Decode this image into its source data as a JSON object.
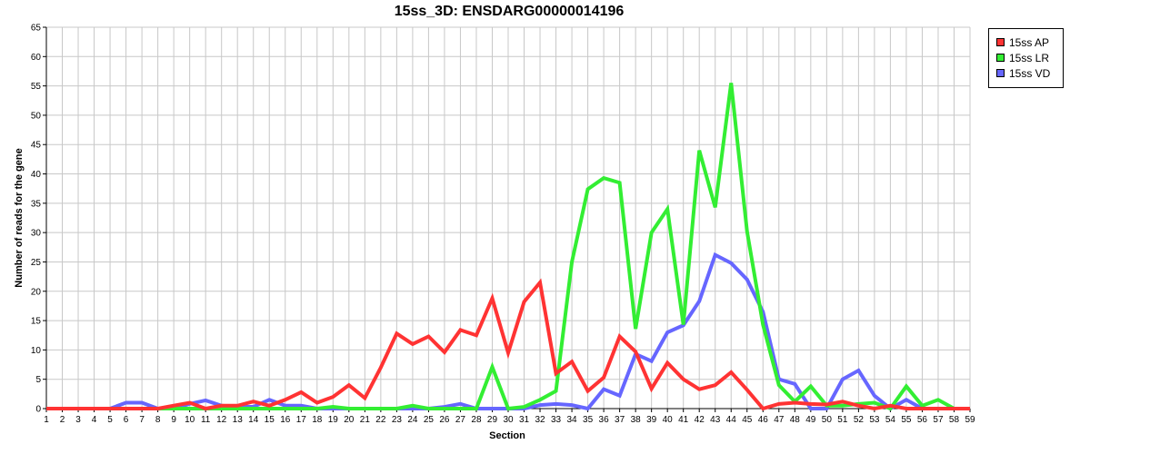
{
  "chart_data": {
    "type": "line",
    "title": "15ss_3D: ENSDARG00000014196",
    "xlabel": "Section",
    "ylabel": "Number of reads for the gene",
    "ylim": [
      0,
      65
    ],
    "yticks": [
      0,
      5,
      10,
      15,
      20,
      25,
      30,
      35,
      40,
      45,
      50,
      55,
      60,
      65
    ],
    "x": [
      "1",
      "2",
      "3",
      "4",
      "5",
      "6",
      "7",
      "8",
      "9",
      "10",
      "11",
      "12",
      "13",
      "14",
      "15",
      "16",
      "17",
      "18",
      "19",
      "20",
      "21",
      "22",
      "23",
      "24",
      "25",
      "26",
      "27",
      "28",
      "29",
      "30",
      "31",
      "32",
      "33",
      "34",
      "35",
      "36",
      "37",
      "38",
      "39",
      "40",
      "41",
      "42",
      "43",
      "44",
      "45",
      "46",
      "47",
      "48",
      "49",
      "50",
      "51",
      "52",
      "53",
      "54",
      "55",
      "56",
      "57",
      "58",
      "59"
    ],
    "grid": true,
    "legend_position": "top-right",
    "series": [
      {
        "name": "15ss AP",
        "color": "#ff3333",
        "values": [
          0,
          0,
          0,
          0,
          0,
          0,
          0,
          0,
          0.5,
          1,
          0,
          0.5,
          0.5,
          1.2,
          0.5,
          1.5,
          2.8,
          1,
          2,
          4,
          1.8,
          7,
          12.8,
          11,
          12.3,
          9.6,
          13.4,
          12.5,
          18.8,
          9.5,
          18.2,
          21.5,
          6,
          8,
          3,
          5.3,
          12.3,
          9.7,
          3.4,
          7.8,
          5,
          3.3,
          4,
          6.2,
          3.2,
          0,
          0.8,
          1,
          0.8,
          0.7,
          1.2,
          0.5,
          0,
          0.5,
          0,
          0,
          0,
          0,
          0
        ]
      },
      {
        "name": "15ss LR",
        "color": "#33ee33",
        "values": [
          0,
          0,
          0,
          0,
          0,
          0,
          0,
          0,
          0,
          0,
          0,
          0,
          0,
          0,
          0,
          0,
          0,
          0,
          0.3,
          0,
          0,
          0,
          0,
          0.5,
          0,
          0,
          0,
          0,
          7.1,
          0,
          0.3,
          1.5,
          3,
          25,
          37.4,
          39.3,
          38.5,
          13.6,
          30,
          34,
          14.3,
          44,
          34.3,
          55.5,
          30.2,
          14.3,
          4,
          1.2,
          3.8,
          0.5,
          0.5,
          0.8,
          1,
          0,
          3.8,
          0.5,
          1.5,
          0,
          0
        ]
      },
      {
        "name": "15ss VD",
        "color": "#6666ff",
        "values": [
          0,
          0,
          0,
          0,
          0,
          1,
          1,
          0,
          0,
          0.8,
          1.4,
          0.5,
          0.3,
          0.3,
          1.5,
          0.5,
          0.5,
          0,
          0,
          0,
          0,
          0,
          0,
          0,
          0,
          0.3,
          0.8,
          0,
          0,
          0,
          0,
          0.6,
          0.8,
          0.6,
          0,
          3.3,
          2.2,
          9.3,
          8.1,
          13,
          14.2,
          18.3,
          26.2,
          24.8,
          22,
          16.5,
          5,
          4.2,
          0,
          0,
          5,
          6.5,
          2.2,
          0,
          1.5,
          0,
          0,
          0,
          0
        ]
      }
    ]
  }
}
